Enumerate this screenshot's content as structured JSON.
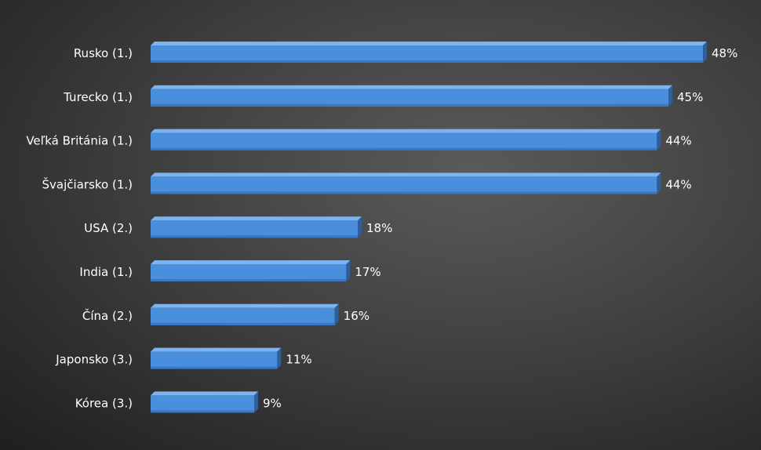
{
  "chart_data": {
    "type": "bar",
    "orientation": "horizontal",
    "style": "3d",
    "categories": [
      "Rusko (1.)",
      "Turecko (1.)",
      "Veľká Británia (1.)",
      "Švajčiarsko (1.)",
      "USA (2.)",
      "India (1.)",
      "Čína (2.)",
      "Japonsko (3.)",
      "Kórea (3.)"
    ],
    "values": [
      48,
      45,
      44,
      44,
      18,
      17,
      16,
      11,
      9
    ],
    "value_labels": [
      "48%",
      "45%",
      "44%",
      "44%",
      "18%",
      "17%",
      "16%",
      "11%",
      "9%"
    ],
    "unit": "%",
    "xlim": [
      0,
      48
    ],
    "grid": false,
    "legend": "none"
  },
  "colors": {
    "bar_front": "#4a8fdc",
    "bar_top": "#7db3ee",
    "bar_side": "#2e5f9c",
    "bar_shadow": "#3a78c4",
    "text": "#ffffff"
  }
}
